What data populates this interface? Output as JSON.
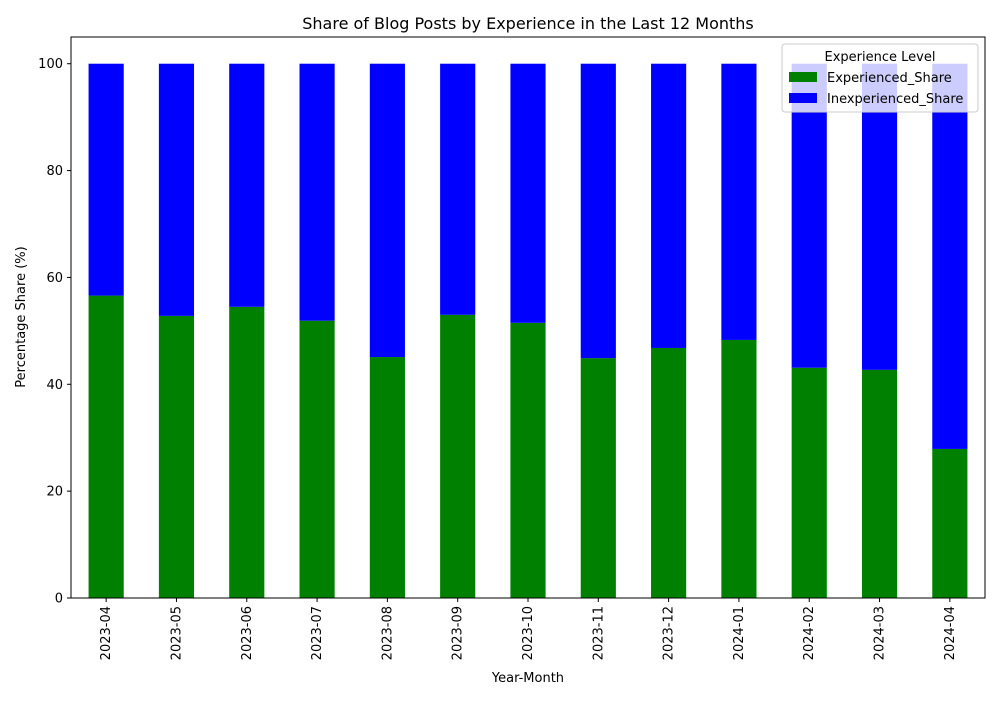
{
  "chart_data": {
    "type": "bar",
    "stacked": true,
    "title": "Share of Blog Posts by Experience in the Last 12 Months",
    "xlabel": "Year-Month",
    "ylabel": "Percentage Share (%)",
    "ylim": [
      0,
      105
    ],
    "yticks": [
      0,
      20,
      40,
      60,
      80,
      100
    ],
    "grid": false,
    "legend": {
      "title": "Experience Level",
      "placement": "top-right"
    },
    "categories": [
      "2023-04",
      "2023-05",
      "2023-06",
      "2023-07",
      "2023-08",
      "2023-09",
      "2023-10",
      "2023-11",
      "2023-12",
      "2024-01",
      "2024-02",
      "2024-03",
      "2024-04"
    ],
    "series": [
      {
        "name": "Experienced_Share",
        "color": "#008000",
        "values": [
          56.6,
          52.8,
          54.5,
          51.9,
          45.1,
          53.0,
          51.5,
          44.9,
          46.8,
          48.3,
          43.1,
          42.7,
          27.9
        ]
      },
      {
        "name": "Inexperienced_Share",
        "color": "#0000ff",
        "values": [
          43.4,
          47.2,
          45.5,
          48.1,
          54.9,
          47.0,
          48.5,
          55.1,
          53.2,
          51.7,
          56.9,
          57.3,
          72.1
        ]
      }
    ]
  }
}
